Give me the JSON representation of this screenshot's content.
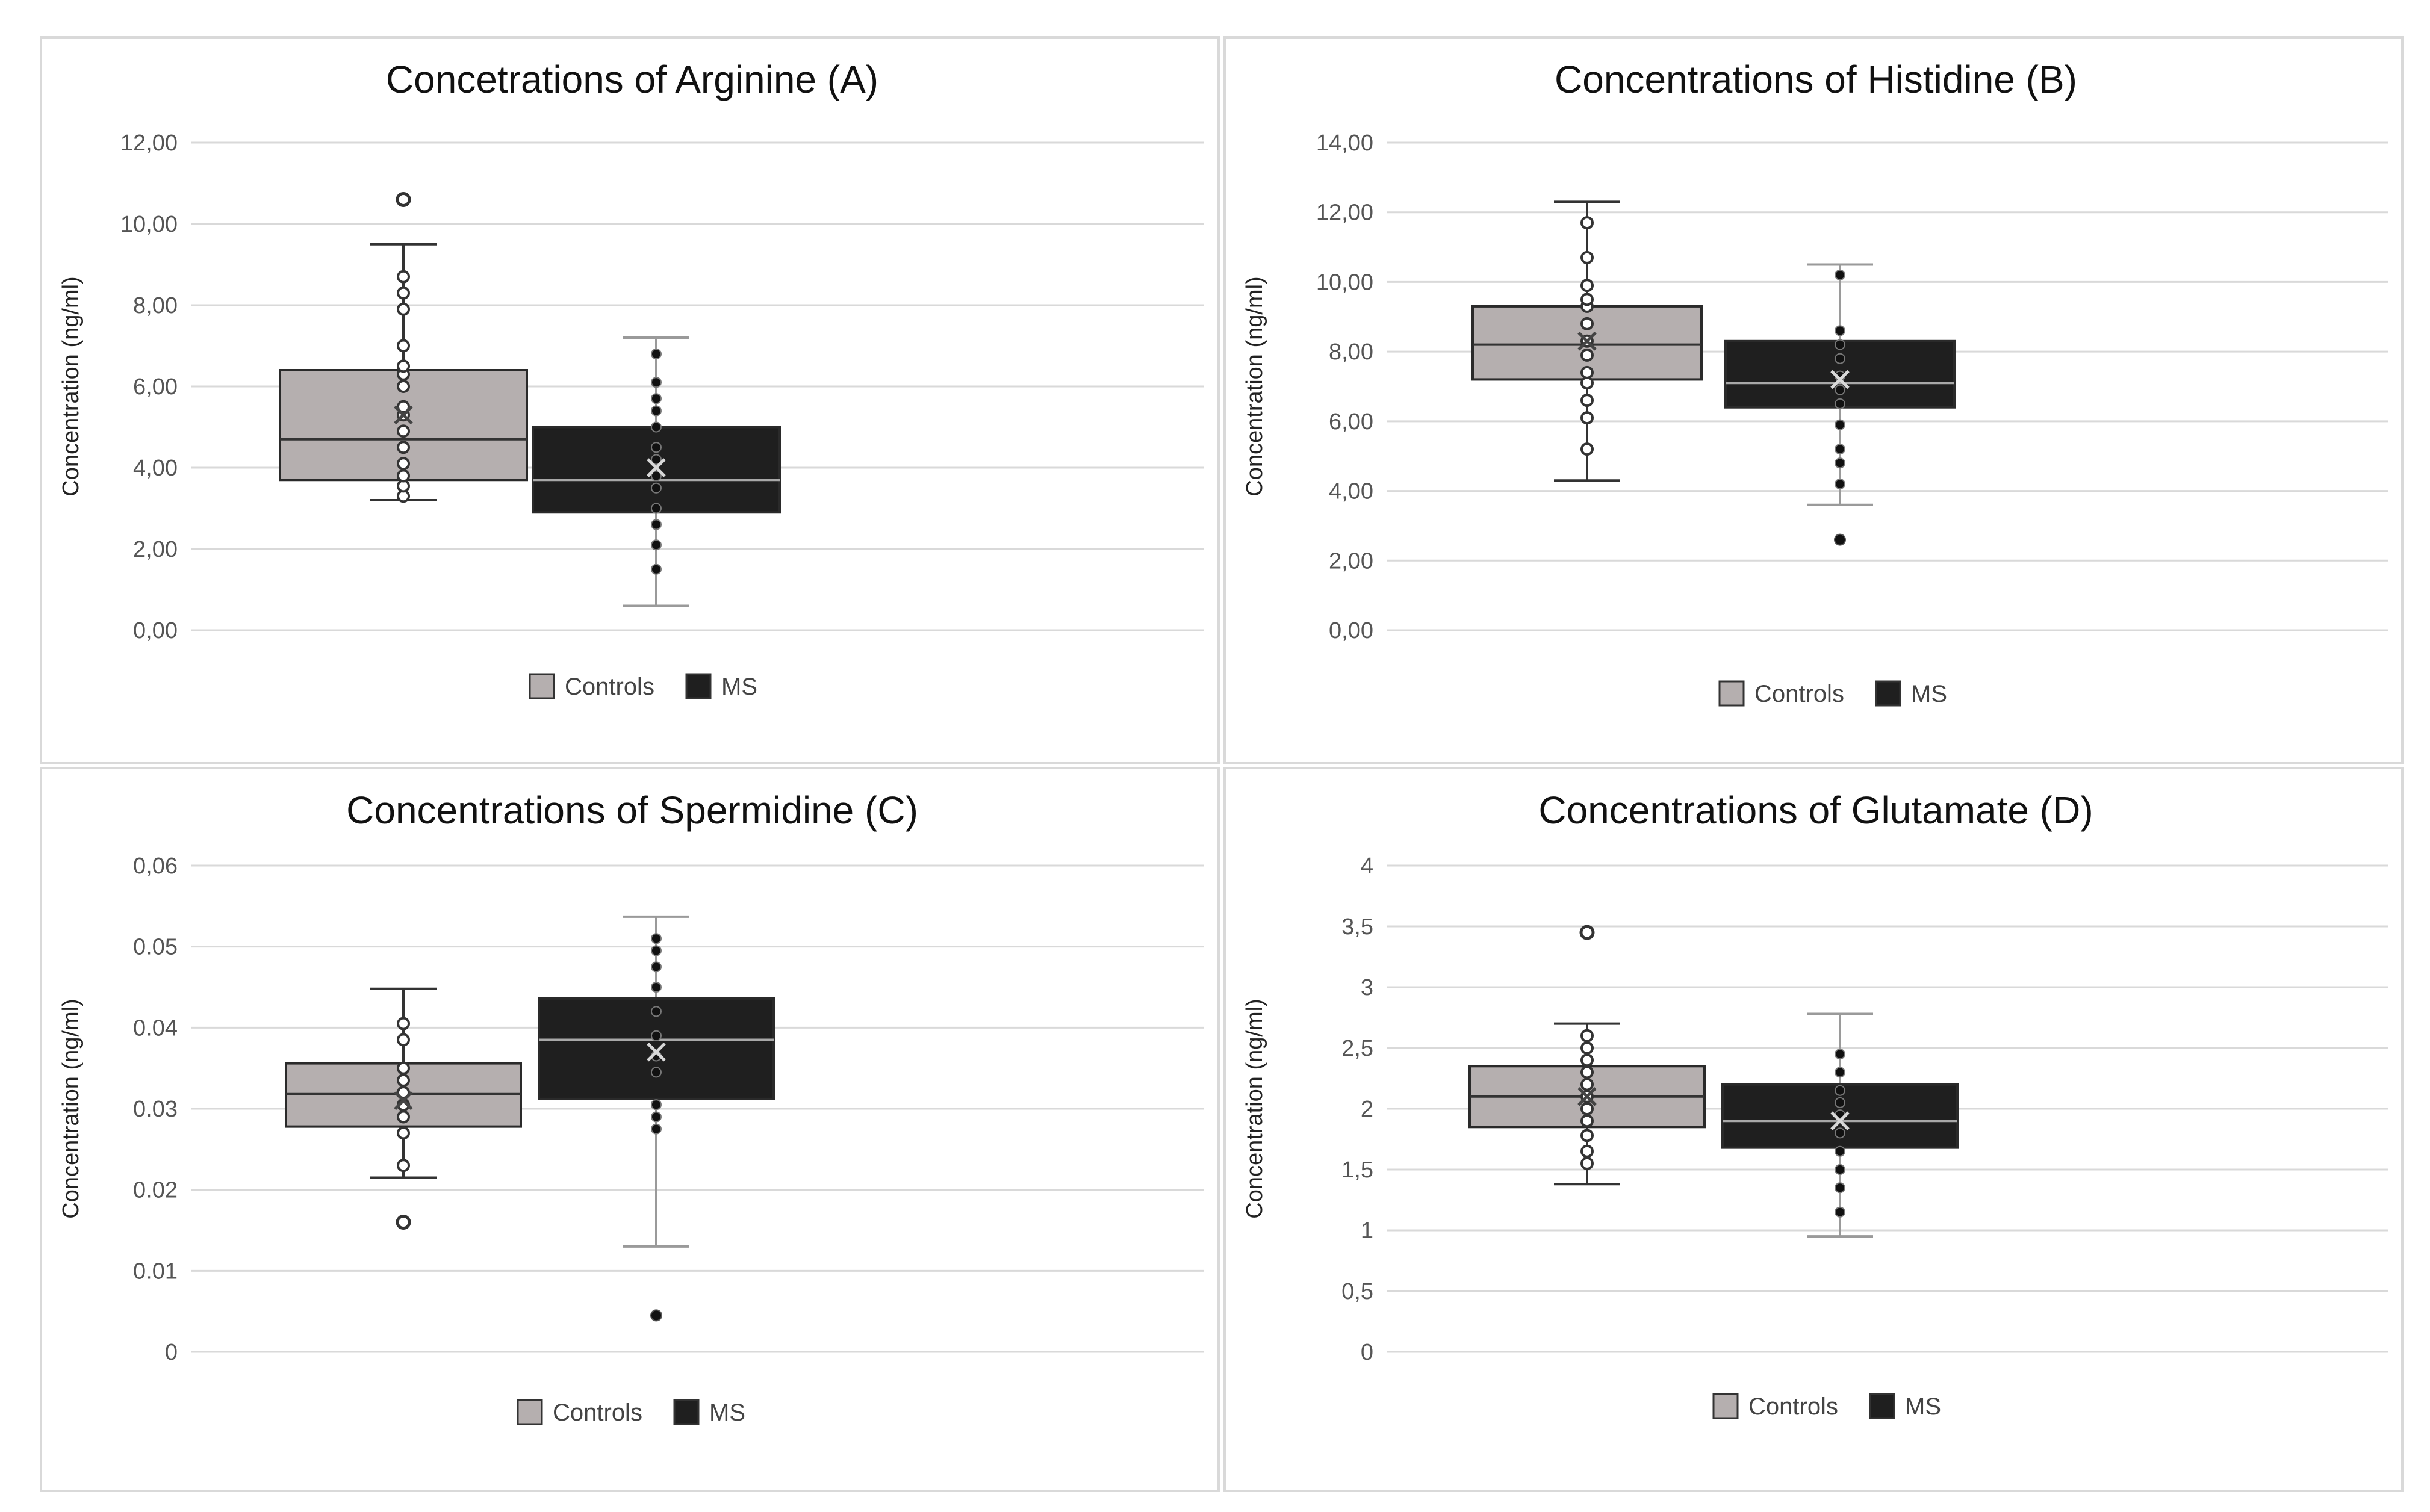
{
  "figure": {
    "legend": [
      {
        "label": "Controls",
        "color": "#b5afaf"
      },
      {
        "label": "MS",
        "color": "#1f1f1f"
      }
    ]
  },
  "chart_data": [
    {
      "type": "box",
      "title": "Concetrations of Arginine (A)",
      "ylabel": "Concentration (ng/ml)",
      "ylim": [
        0,
        12
      ],
      "ytick_labels": [
        "0,00",
        "2,00",
        "4,00",
        "6,00",
        "8,00",
        "10,00",
        "12,00"
      ],
      "ytick_values": [
        0,
        2,
        4,
        6,
        8,
        10,
        12
      ],
      "series": [
        {
          "name": "Controls",
          "color": "#b5afaf",
          "whisker_low": 3.2,
          "q1": 3.7,
          "median": 4.7,
          "q3": 6.4,
          "whisker_high": 9.5,
          "mean": 5.3,
          "points": [
            3.3,
            3.55,
            3.8,
            4.1,
            4.5,
            4.9,
            5.3,
            5.5,
            6.0,
            6.3,
            6.5,
            7.0,
            7.9,
            8.3,
            8.7
          ],
          "outliers": [
            10.6
          ]
        },
        {
          "name": "MS",
          "color": "#1f1f1f",
          "whisker_low": 0.6,
          "q1": 2.9,
          "median": 3.7,
          "q3": 5.0,
          "whisker_high": 7.2,
          "mean": 4.0,
          "points": [
            1.5,
            2.1,
            2.6,
            3.0,
            3.5,
            3.8,
            4.2,
            4.5,
            5.0,
            5.4,
            5.7,
            6.1,
            6.8
          ],
          "outliers": []
        }
      ]
    },
    {
      "type": "box",
      "title": "Concentrations of Histidine (B)",
      "ylabel": "Concentration (ng/ml)",
      "ylim": [
        0,
        14
      ],
      "ytick_labels": [
        "0,00",
        "2,00",
        "4,00",
        "6,00",
        "8,00",
        "10,00",
        "12,00",
        "14,00"
      ],
      "ytick_values": [
        0,
        2,
        4,
        6,
        8,
        10,
        12,
        14
      ],
      "series": [
        {
          "name": "Controls",
          "color": "#b5afaf",
          "whisker_low": 4.3,
          "q1": 7.2,
          "median": 8.2,
          "q3": 9.3,
          "whisker_high": 12.3,
          "mean": 8.3,
          "points": [
            5.2,
            6.1,
            6.6,
            7.1,
            7.4,
            7.9,
            8.3,
            8.8,
            9.3,
            9.5,
            9.9,
            10.7,
            11.7
          ],
          "outliers": []
        },
        {
          "name": "MS",
          "color": "#1f1f1f",
          "whisker_low": 3.6,
          "q1": 6.4,
          "median": 7.1,
          "q3": 8.3,
          "whisker_high": 10.5,
          "mean": 7.2,
          "points": [
            4.2,
            4.8,
            5.2,
            5.9,
            6.5,
            6.9,
            7.3,
            7.8,
            8.2,
            8.6,
            10.2
          ],
          "outliers": [
            2.6
          ]
        }
      ]
    },
    {
      "type": "box",
      "title": "Concentrations of Spermidine (C)",
      "ylabel": "Concentration (ng/ml)",
      "ylim": [
        0,
        0.06
      ],
      "ytick_labels": [
        "0",
        "0.01",
        "0.02",
        "0.03",
        "0.04",
        "0.05",
        "0,06"
      ],
      "ytick_values": [
        0,
        0.01,
        0.02,
        0.03,
        0.04,
        0.05,
        0.06
      ],
      "series": [
        {
          "name": "Controls",
          "color": "#b5afaf",
          "whisker_low": 0.0215,
          "q1": 0.0278,
          "median": 0.0318,
          "q3": 0.0356,
          "whisker_high": 0.0448,
          "mean": 0.031,
          "points": [
            0.023,
            0.027,
            0.029,
            0.0305,
            0.032,
            0.0335,
            0.035,
            0.0385,
            0.0405
          ],
          "outliers": [
            0.016
          ]
        },
        {
          "name": "MS",
          "color": "#1f1f1f",
          "whisker_low": 0.013,
          "q1": 0.0312,
          "median": 0.0385,
          "q3": 0.0436,
          "whisker_high": 0.0537,
          "mean": 0.037,
          "points": [
            0.0275,
            0.029,
            0.0305,
            0.0345,
            0.0365,
            0.039,
            0.042,
            0.045,
            0.0475,
            0.0495,
            0.051
          ],
          "outliers": [
            0.0045
          ]
        }
      ]
    },
    {
      "type": "box",
      "title": "Concentrations of Glutamate (D)",
      "ylabel": "Concentration (ng/ml)",
      "ylim": [
        0,
        4
      ],
      "ytick_labels": [
        "0",
        "0,5",
        "1",
        "1,5",
        "2",
        "2,5",
        "3",
        "3,5",
        "4"
      ],
      "ytick_values": [
        0,
        0.5,
        1,
        1.5,
        2,
        2.5,
        3,
        3.5,
        4
      ],
      "series": [
        {
          "name": "Controls",
          "color": "#b5afaf",
          "whisker_low": 1.38,
          "q1": 1.85,
          "median": 2.1,
          "q3": 2.35,
          "whisker_high": 2.7,
          "mean": 2.1,
          "points": [
            1.55,
            1.65,
            1.78,
            1.9,
            2.0,
            2.1,
            2.2,
            2.3,
            2.4,
            2.5,
            2.6
          ],
          "outliers": [
            3.45
          ]
        },
        {
          "name": "MS",
          "color": "#1f1f1f",
          "whisker_low": 0.95,
          "q1": 1.68,
          "median": 1.9,
          "q3": 2.2,
          "whisker_high": 2.78,
          "mean": 1.9,
          "points": [
            1.15,
            1.35,
            1.5,
            1.65,
            1.8,
            1.95,
            2.05,
            2.15,
            2.3,
            2.45
          ],
          "outliers": []
        }
      ]
    }
  ]
}
